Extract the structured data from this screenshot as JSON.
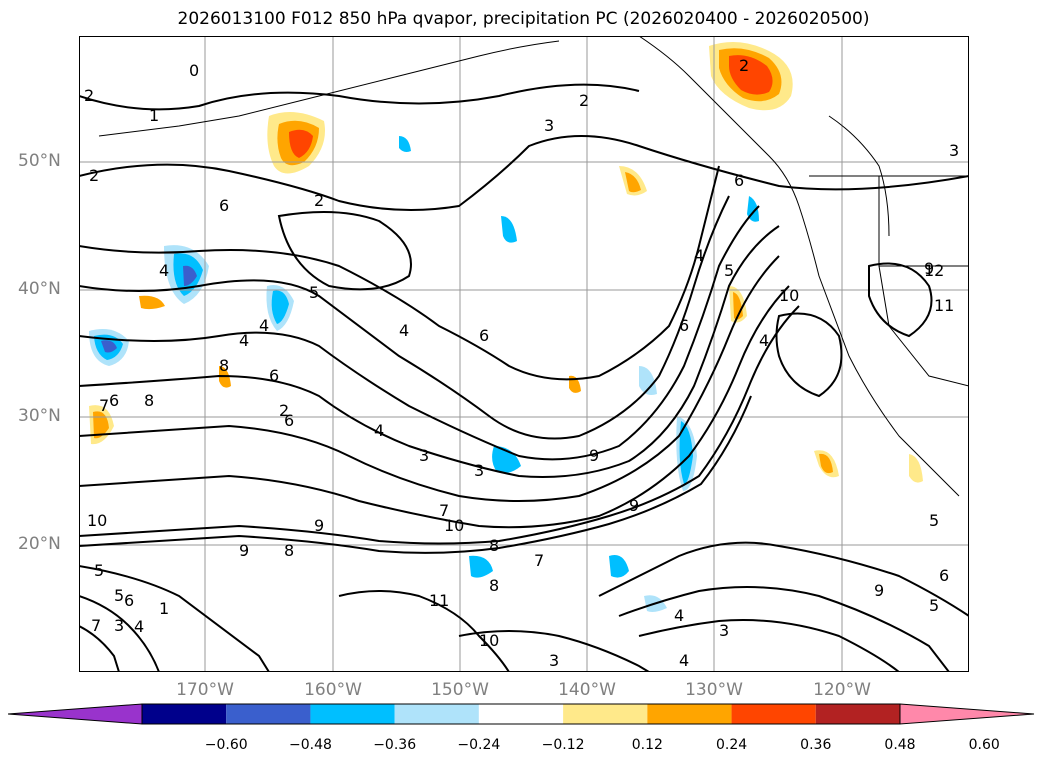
{
  "title": "2026013100 F012 850 hPa qvapor, precipitation PC (2026020400 - 2026020500)",
  "map": {
    "lat_labels": [
      "50°N",
      "40°N",
      "30°N",
      "20°N"
    ],
    "lon_labels": [
      "170°W",
      "160°W",
      "150°W",
      "140°W",
      "130°W",
      "120°W"
    ],
    "contour_variable": "850 hPa qvapor",
    "fill_variable": "precipitation PC",
    "contour_labels": [
      "0",
      "2",
      "1",
      "2",
      "3",
      "2",
      "6",
      "4",
      "2",
      "4",
      "5",
      "4",
      "6",
      "8",
      "4",
      "2",
      "6",
      "8",
      "7",
      "6",
      "6",
      "4",
      "3",
      "3",
      "7",
      "9",
      "10",
      "9",
      "8",
      "9",
      "10",
      "8",
      "7",
      "6",
      "4",
      "5",
      "10",
      "9",
      "10",
      "11",
      "12",
      "11",
      "10",
      "3",
      "4",
      "4",
      "3",
      "4",
      "5",
      "6",
      "5",
      "4",
      "3",
      "2",
      "6",
      "9",
      "8",
      "9",
      "5",
      "6",
      "1",
      "7",
      "3",
      "4",
      "5"
    ]
  },
  "colorbar": {
    "ticks": [
      "−0.60",
      "−0.48",
      "−0.36",
      "−0.24",
      "−0.12",
      "0.12",
      "0.24",
      "0.36",
      "0.48",
      "0.60"
    ],
    "colors": [
      "#9933cc",
      "#00008b",
      "#3a5fcd",
      "#00bfff",
      "#afe3fa",
      "#ffffff",
      "#ffe98a",
      "#ffa500",
      "#ff4500",
      "#b22222",
      "#ff88aa"
    ]
  }
}
